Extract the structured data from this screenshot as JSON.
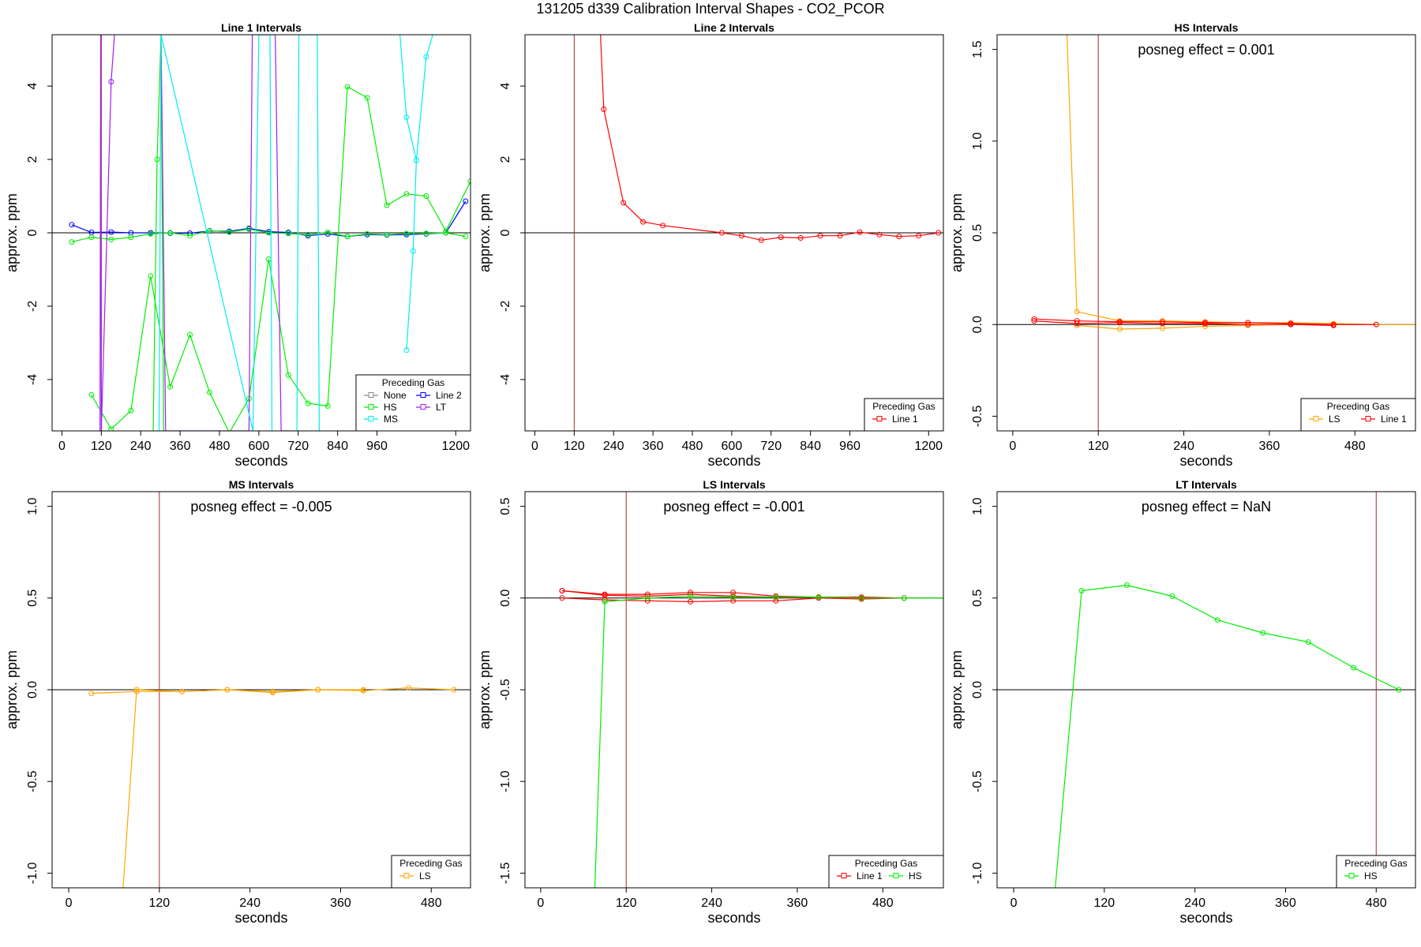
{
  "figure": {
    "title": "131205  d339   Calibration Interval Shapes - CO2_PCOR"
  },
  "chart_data": [
    {
      "type": "line",
      "title": "Line 1 Intervals",
      "xlabel": "seconds",
      "ylabel": "approx. ppm",
      "xlim": [
        -30,
        1245
      ],
      "ylim": [
        -5.4,
        5.4
      ],
      "xticks": [
        0,
        120,
        240,
        360,
        480,
        600,
        720,
        840,
        960,
        1200
      ],
      "yticks": [
        -4,
        -2,
        0,
        2,
        4
      ],
      "vline": 120,
      "annotation": "",
      "legend": {
        "title": "Preceding Gas",
        "location": "bottom-right",
        "columns": 2,
        "entries": [
          {
            "name": "None",
            "color": "#888888"
          },
          {
            "name": "Line 2",
            "color": "#0000ff"
          },
          {
            "name": "HS",
            "color": "#00ee00"
          },
          {
            "name": "LT",
            "color": "#a020f0"
          },
          {
            "name": "MS",
            "color": "#00eeee"
          }
        ]
      },
      "series": [
        {
          "name": "Line 2",
          "color": "#0000ff",
          "x": [
            30,
            90,
            150,
            210,
            270,
            330,
            390,
            450,
            510,
            570,
            630,
            690,
            750,
            810,
            870,
            930,
            990,
            1050,
            1110,
            1170,
            1230
          ],
          "y": [
            0.22,
            0.01,
            0.02,
            0.0,
            0.0,
            -0.01,
            -0.01,
            0.05,
            0.04,
            0.12,
            0.03,
            0.01,
            -0.08,
            -0.03,
            -0.1,
            -0.05,
            -0.06,
            -0.05,
            -0.03,
            0.0,
            0.86
          ]
        },
        {
          "name": "HS",
          "color": "#00ee00",
          "x": [
            30,
            90,
            150,
            210,
            270,
            330,
            390,
            450,
            510,
            570,
            630,
            690,
            750,
            810,
            870,
            930,
            990,
            1050,
            1110,
            1170,
            1230
          ],
          "y": [
            -0.25,
            -0.12,
            -0.18,
            -0.12,
            -0.03,
            0.0,
            -0.08,
            0.06,
            0.02,
            0.1,
            0.0,
            -0.02,
            -0.05,
            0.02,
            -0.1,
            -0.03,
            -0.05,
            -0.02,
            -0.02,
            0.0,
            -0.1
          ]
        },
        {
          "name": "HS",
          "color": "#00ee00",
          "x": [
            90,
            150,
            210,
            270,
            330,
            390,
            450,
            510,
            570,
            630,
            690,
            750,
            810,
            870,
            930,
            990,
            1050,
            1110,
            1170,
            1245
          ],
          "y": [
            -4.42,
            -5.35,
            -4.85,
            -1.18,
            -4.2,
            -2.78,
            -4.35,
            -5.45,
            -4.52,
            -0.72,
            -3.88,
            -4.65,
            -4.72,
            3.98,
            3.68,
            0.75,
            1.06,
            1.0,
            0.05,
            1.4
          ]
        },
        {
          "name": "HS",
          "color": "#00ee00",
          "x": [
            278,
            290,
            302,
            310
          ],
          "y": [
            -5.4,
            2.0,
            5.4,
            -5.4
          ]
        },
        {
          "name": "LT",
          "color": "#a020f0",
          "x": [
            116,
            118,
            120,
            150,
            160
          ],
          "y": [
            -5.4,
            5.4,
            -5.4,
            4.12,
            5.4
          ]
        },
        {
          "name": "LT",
          "color": "#a020f0",
          "x": [
            302,
            316,
            570,
            580,
            650,
            668,
            710
          ],
          "y": [
            5.4,
            -5.4,
            -5.4,
            5.4,
            5.4,
            -5.4,
            -5.4
          ]
        },
        {
          "name": "MS",
          "color": "#00eeee",
          "x": [
            296,
            302,
            582,
            600,
            634,
            640
          ],
          "y": [
            -5.4,
            5.4,
            -5.4,
            5.4,
            5.4,
            -5.4
          ]
        },
        {
          "name": "MS",
          "color": "#00eeee",
          "x": [
            716,
            722,
            778,
            784
          ],
          "y": [
            -5.4,
            5.4,
            5.4,
            -5.4
          ]
        },
        {
          "name": "MS",
          "color": "#00eeee",
          "x": [
            1030,
            1050,
            1080,
            1110,
            1130
          ],
          "y": [
            5.4,
            3.15,
            1.98,
            4.8,
            5.4
          ]
        },
        {
          "name": "MS",
          "color": "#00eeee",
          "x": [
            1050,
            1070,
            1080
          ],
          "y": [
            -3.2,
            -0.5,
            1.98
          ]
        }
      ]
    },
    {
      "type": "line",
      "title": "Line 2 Intervals",
      "xlabel": "seconds",
      "ylabel": "approx. ppm",
      "xlim": [
        -30,
        1245
      ],
      "ylim": [
        -5.4,
        5.4
      ],
      "xticks": [
        0,
        120,
        240,
        360,
        480,
        600,
        720,
        840,
        960,
        1200
      ],
      "yticks": [
        -4,
        -2,
        0,
        2,
        4
      ],
      "vline": 120,
      "annotation": "",
      "legend": {
        "title": "Preceding Gas",
        "location": "bottom-right",
        "columns": 1,
        "entries": [
          {
            "name": "Line 1",
            "color": "#ff0000"
          }
        ]
      },
      "series": [
        {
          "name": "Line 1",
          "color": "#ff0000",
          "x": [
            200,
            210,
            270,
            330,
            390,
            570,
            630,
            690,
            750,
            810,
            870,
            930,
            990,
            1050,
            1110,
            1170,
            1230
          ],
          "y": [
            5.4,
            3.37,
            0.82,
            0.3,
            0.2,
            0.0,
            -0.08,
            -0.2,
            -0.12,
            -0.14,
            -0.08,
            -0.08,
            0.02,
            -0.05,
            -0.1,
            -0.08,
            0.0
          ]
        }
      ]
    },
    {
      "type": "line",
      "title": "HS Intervals",
      "xlabel": "seconds",
      "ylabel": "approx. ppm",
      "xlim": [
        -22,
        565
      ],
      "ylim": [
        -0.58,
        1.58
      ],
      "xticks": [
        0,
        120,
        240,
        360,
        480
      ],
      "yticks": [
        -0.5,
        0.0,
        0.5,
        1.0,
        1.5
      ],
      "vline": 120,
      "annotation": "posneg effect = 0.001",
      "legend": {
        "title": "Preceding Gas",
        "location": "bottom-right",
        "columns": 2,
        "entries": [
          {
            "name": "LS",
            "color": "#ffa500"
          },
          {
            "name": "Line 1",
            "color": "#ff0000"
          }
        ]
      },
      "series": [
        {
          "name": "LS",
          "color": "#ffa500",
          "x": [
            76,
            90,
            150,
            210,
            270,
            330,
            390,
            450,
            510,
            570
          ],
          "y": [
            1.58,
            0.07,
            0.02,
            0.02,
            0.015,
            0.01,
            0.01,
            0.005,
            0.0,
            0.0
          ]
        },
        {
          "name": "LS",
          "color": "#ffa500",
          "x": [
            90,
            150,
            210,
            270,
            330,
            390
          ],
          "y": [
            -0.005,
            -0.025,
            -0.02,
            -0.01,
            -0.005,
            0.0
          ]
        },
        {
          "name": "Line 1",
          "color": "#ff0000",
          "x": [
            30,
            90,
            150,
            210,
            270,
            330,
            390,
            450,
            510
          ],
          "y": [
            0.03,
            0.02,
            0.015,
            0.015,
            0.01,
            0.01,
            0.005,
            0.0,
            0.0
          ]
        },
        {
          "name": "Line 1",
          "color": "#ff0000",
          "x": [
            30,
            90,
            150,
            210,
            270,
            330,
            390,
            450
          ],
          "y": [
            0.02,
            0.005,
            0.01,
            0.005,
            0.005,
            0.0,
            0.0,
            -0.005
          ]
        }
      ]
    },
    {
      "type": "line",
      "title": "MS Intervals",
      "xlabel": "seconds",
      "ylabel": "approx. ppm",
      "xlim": [
        -22,
        532
      ],
      "ylim": [
        -1.08,
        1.08
      ],
      "xticks": [
        0,
        120,
        240,
        360,
        480
      ],
      "yticks": [
        -1.0,
        -0.5,
        0.0,
        0.5,
        1.0
      ],
      "vline": 120,
      "annotation": "posneg effect = -0.005",
      "legend": {
        "title": "Preceding Gas",
        "location": "bottom-right",
        "columns": 1,
        "entries": [
          {
            "name": "LS",
            "color": "#ffa500"
          }
        ]
      },
      "series": [
        {
          "name": "LS",
          "color": "#ffa500",
          "x": [
            72,
            90,
            150,
            210,
            270,
            330,
            390,
            450,
            510
          ],
          "y": [
            -1.08,
            0.0,
            -0.01,
            0.0,
            -0.01,
            0.0,
            -0.005,
            0.01,
            0.0
          ]
        },
        {
          "name": "LS",
          "color": "#ffa500",
          "x": [
            30,
            90,
            150,
            210,
            270,
            330,
            390
          ],
          "y": [
            -0.02,
            -0.01,
            -0.01,
            0.0,
            -0.015,
            0.0,
            0.0
          ]
        }
      ]
    },
    {
      "type": "line",
      "title": "LS Intervals",
      "xlabel": "seconds",
      "ylabel": "approx. ppm",
      "xlim": [
        -22,
        565
      ],
      "ylim": [
        -1.58,
        0.58
      ],
      "xticks": [
        0,
        120,
        240,
        360,
        480
      ],
      "yticks": [
        -1.5,
        -1.0,
        -0.5,
        0.0,
        0.5
      ],
      "vline": 120,
      "annotation": "posneg effect = -0.001",
      "legend": {
        "title": "Preceding Gas",
        "location": "bottom-right",
        "columns": 2,
        "entries": [
          {
            "name": "Line 1",
            "color": "#ff0000"
          },
          {
            "name": "HS",
            "color": "#00ee00"
          }
        ]
      },
      "series": [
        {
          "name": "Line 1",
          "color": "#ff0000",
          "x": [
            30,
            90,
            150,
            210,
            270,
            330,
            390,
            450,
            510
          ],
          "y": [
            0.04,
            0.02,
            0.02,
            0.03,
            0.03,
            0.01,
            0.005,
            0.005,
            0.0
          ]
        },
        {
          "name": "Line 1",
          "color": "#ff0000",
          "x": [
            30,
            90,
            150,
            210,
            270,
            330,
            390,
            450,
            510
          ],
          "y": [
            0.0,
            -0.01,
            -0.015,
            -0.02,
            -0.015,
            -0.015,
            0.0,
            -0.005,
            0.0
          ]
        },
        {
          "name": "Line 1",
          "color": "#ff0000",
          "x": [
            30,
            90,
            150,
            210,
            270,
            330,
            390,
            450
          ],
          "y": [
            0.04,
            0.015,
            0.01,
            0.02,
            0.01,
            0.005,
            0.005,
            0.0
          ]
        },
        {
          "name": "HS",
          "color": "#00ee00",
          "x": [
            76,
            90,
            150,
            210,
            270,
            330,
            390,
            450,
            510,
            570
          ],
          "y": [
            -1.58,
            -0.02,
            0.0,
            0.01,
            0.005,
            0.005,
            0.005,
            0.0,
            0.0,
            0.0
          ]
        }
      ]
    },
    {
      "type": "line",
      "title": "LT Intervals",
      "xlabel": "seconds",
      "ylabel": "approx. ppm",
      "xlim": [
        -22,
        532
      ],
      "ylim": [
        -1.08,
        1.08
      ],
      "xticks": [
        0,
        120,
        240,
        360,
        480
      ],
      "yticks": [
        -1.0,
        -0.5,
        0.0,
        0.5,
        1.0
      ],
      "vline": 480,
      "annotation": "posneg effect = NaN",
      "legend": {
        "title": "Preceding Gas",
        "location": "bottom-right",
        "columns": 1,
        "entries": [
          {
            "name": "HS",
            "color": "#00ee00"
          }
        ]
      },
      "series": [
        {
          "name": "HS",
          "color": "#00ee00",
          "x": [
            55,
            90,
            150,
            210,
            270,
            330,
            390,
            450,
            510
          ],
          "y": [
            -1.08,
            0.54,
            0.57,
            0.51,
            0.38,
            0.31,
            0.26,
            0.12,
            0.0
          ]
        }
      ]
    }
  ]
}
